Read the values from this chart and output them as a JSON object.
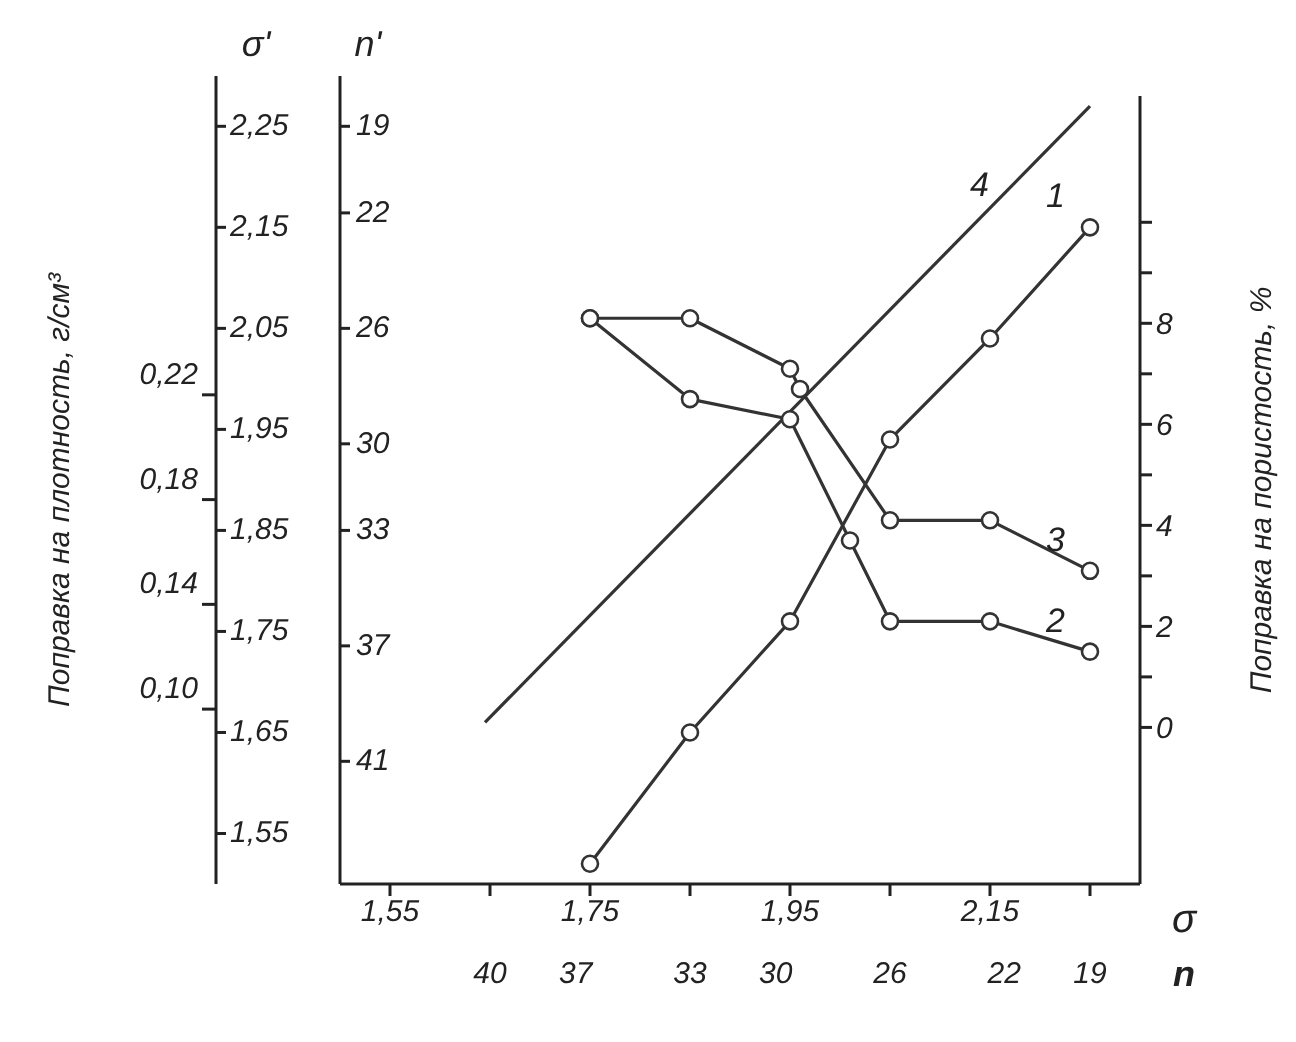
{
  "chart_data": {
    "type": "line",
    "xlabel": "σ",
    "x2label": "n",
    "ylabel": "σ'",
    "y2label": "Поправка на пористость, %",
    "y3label": "n'",
    "annotations": [
      "Поправка на плотность, г/см³",
      "0,22",
      "0,18",
      "0,14",
      "0,10"
    ],
    "xlim": [
      1.5,
      2.3
    ],
    "xticks": [
      {
        "value": 1.55,
        "label": "1,55"
      },
      {
        "value": 1.65,
        "label": null
      },
      {
        "value": 1.75,
        "label": "1,75"
      },
      {
        "value": 1.85,
        "label": null
      },
      {
        "value": 1.95,
        "label": "1,95"
      },
      {
        "value": 2.05,
        "label": null
      },
      {
        "value": 2.15,
        "label": "2,15"
      },
      {
        "value": 2.25,
        "label": null
      }
    ],
    "x2lim": [
      45.25,
      17.25
    ],
    "x2ticks": [
      40,
      37,
      33,
      30,
      26,
      22,
      19
    ],
    "ylim": [
      1.5,
      2.28
    ],
    "yticks": [
      {
        "value": 1.55,
        "label": "1,55"
      },
      {
        "value": 1.65,
        "label": "1,65"
      },
      {
        "value": 1.75,
        "label": "1,75"
      },
      {
        "value": 1.85,
        "label": "1,85"
      },
      {
        "value": 1.95,
        "label": "1,95"
      },
      {
        "value": 2.05,
        "label": "2,05"
      },
      {
        "value": 2.15,
        "label": "2,15"
      },
      {
        "value": 2.25,
        "label": "2,25"
      }
    ],
    "y2lim": [
      -3.1,
      12.5
    ],
    "y2ticks": [
      0,
      {
        "value": 1,
        "label": null
      },
      2,
      {
        "value": 3,
        "label": null
      },
      4,
      {
        "value": 5,
        "label": null
      },
      6,
      {
        "value": 7,
        "label": null
      },
      8,
      {
        "value": 9,
        "label": null
      },
      {
        "value": 10,
        "label": null
      }
    ],
    "y3lim": [
      45.25,
      17.95
    ],
    "y3ticks": [
      19,
      22,
      26,
      30,
      33,
      37,
      41
    ],
    "grid": false,
    "marker": "circle",
    "line_style": "solid",
    "series": [
      {
        "name": "1",
        "color": "#333333",
        "x": [
          1.75,
          1.85,
          1.95,
          2.05,
          2.15,
          2.25
        ],
        "values": [
          1.52,
          1.65,
          1.76,
          1.94,
          2.04,
          2.15
        ]
      },
      {
        "name": "2",
        "color": "#333333",
        "x": [
          1.75,
          1.85,
          1.95,
          2.01,
          2.05,
          2.15,
          2.25
        ],
        "values": [
          2.06,
          1.98,
          1.96,
          1.84,
          1.76,
          1.76,
          1.73
        ]
      },
      {
        "name": "3",
        "color": "#333333",
        "x": [
          1.75,
          1.85,
          1.95,
          1.96,
          2.05,
          2.15,
          2.25
        ],
        "values": [
          2.06,
          2.06,
          2.01,
          1.99,
          1.86,
          1.86,
          1.81
        ]
      },
      {
        "name": "4",
        "color": "#333333",
        "marker": "none",
        "x": [
          1.645,
          2.25
        ],
        "values": [
          1.66,
          2.27
        ]
      }
    ]
  }
}
